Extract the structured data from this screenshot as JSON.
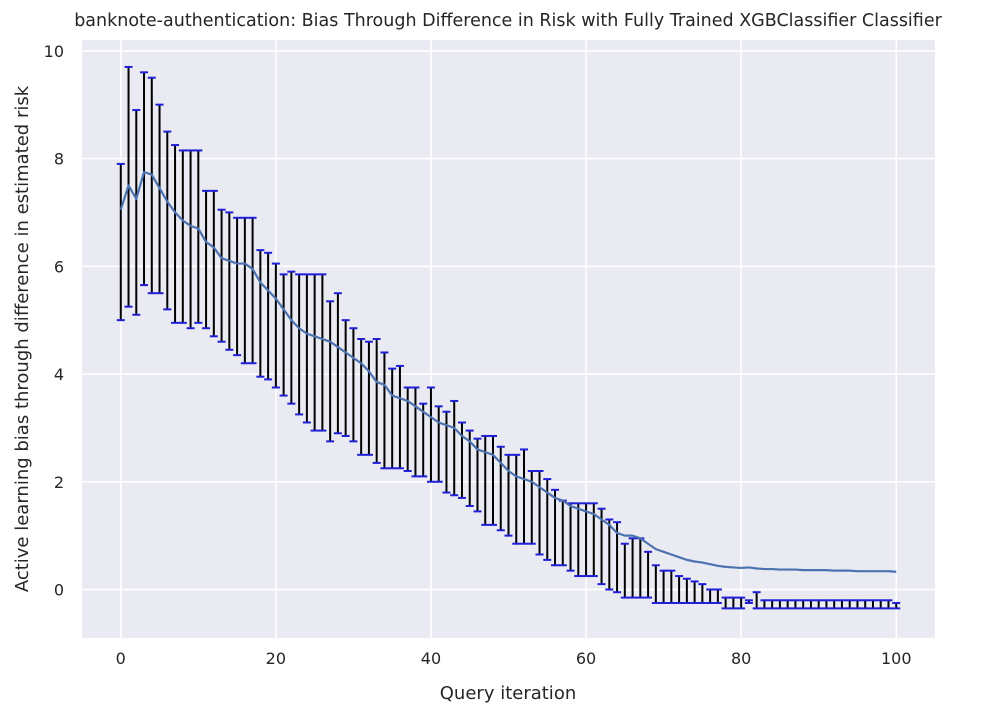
{
  "chart_data": {
    "type": "line",
    "title": "banknote-authentication: Bias Through Difference in Risk with Fully Trained XGBClassifier Classifier",
    "xlabel": "Query iteration",
    "ylabel": "Active learning bias through difference in estimated risk",
    "xlim": [
      -5,
      105
    ],
    "ylim": [
      -0.9,
      10.2
    ],
    "xticks": [
      0,
      20,
      40,
      60,
      80,
      100
    ],
    "yticks": [
      0,
      2,
      4,
      6,
      8,
      10
    ],
    "x_tick_labels": [
      "0",
      "20",
      "40",
      "60",
      "80",
      "100"
    ],
    "y_tick_labels": [
      "0",
      "2",
      "4",
      "6",
      "8",
      "10"
    ],
    "grid": true,
    "colors": {
      "background": "#eaeaf2",
      "grid": "#ffffff",
      "line": "#4c72b0",
      "errorbar": "#000000",
      "cap": "#1f1fd6"
    },
    "series": [
      {
        "x": [
          0,
          1,
          2,
          3,
          4,
          5,
          6,
          7,
          8,
          9,
          10,
          11,
          12,
          13,
          14,
          15,
          16,
          17,
          18,
          19,
          20,
          21,
          22,
          23,
          24,
          25,
          26,
          27,
          28,
          29,
          30,
          31,
          32,
          33,
          34,
          35,
          36,
          37,
          38,
          39,
          40,
          41,
          42,
          43,
          44,
          45,
          46,
          47,
          48,
          49,
          50,
          51,
          52,
          53,
          54,
          55,
          56,
          57,
          58,
          59,
          60,
          61,
          62,
          63,
          64,
          65,
          66,
          67,
          68,
          69,
          70,
          71,
          72,
          73,
          74,
          75,
          76,
          77,
          78,
          79,
          80,
          81,
          82,
          83,
          84,
          85,
          86,
          87,
          88,
          89,
          90,
          91,
          92,
          93,
          94,
          95,
          96,
          97,
          98,
          99,
          100
        ],
        "values": [
          7.05,
          7.5,
          7.25,
          7.75,
          7.7,
          7.45,
          7.2,
          7.0,
          6.85,
          6.75,
          6.7,
          6.45,
          6.35,
          6.15,
          6.1,
          6.05,
          6.05,
          5.95,
          5.7,
          5.55,
          5.4,
          5.2,
          5.0,
          4.85,
          4.75,
          4.7,
          4.65,
          4.6,
          4.5,
          4.4,
          4.3,
          4.2,
          4.05,
          3.85,
          3.8,
          3.6,
          3.55,
          3.5,
          3.4,
          3.3,
          3.2,
          3.1,
          3.05,
          3.0,
          2.85,
          2.75,
          2.6,
          2.55,
          2.5,
          2.35,
          2.2,
          2.1,
          2.05,
          2.0,
          1.9,
          1.8,
          1.7,
          1.65,
          1.55,
          1.5,
          1.45,
          1.4,
          1.3,
          1.2,
          1.05,
          1.0,
          1.0,
          0.95,
          0.85,
          0.75,
          0.7,
          0.65,
          0.6,
          0.55,
          0.52,
          0.5,
          0.47,
          0.44,
          0.42,
          0.41,
          0.4,
          0.41,
          0.39,
          0.38,
          0.38,
          0.37,
          0.37,
          0.37,
          0.36,
          0.36,
          0.36,
          0.36,
          0.35,
          0.35,
          0.35,
          0.34,
          0.34,
          0.34,
          0.34,
          0.34,
          0.33
        ],
        "lower": [
          5.0,
          5.25,
          5.1,
          5.65,
          5.5,
          5.5,
          5.2,
          4.95,
          4.95,
          4.85,
          4.95,
          4.85,
          4.7,
          4.6,
          4.45,
          4.35,
          4.2,
          4.2,
          3.95,
          3.9,
          3.75,
          3.6,
          3.45,
          3.25,
          3.1,
          2.95,
          2.95,
          2.75,
          2.9,
          2.85,
          2.75,
          2.5,
          2.5,
          2.35,
          2.25,
          2.25,
          2.25,
          2.2,
          2.1,
          2.1,
          2.0,
          2.0,
          1.8,
          1.75,
          1.7,
          1.55,
          1.45,
          1.2,
          1.2,
          1.1,
          1.0,
          0.85,
          0.85,
          0.85,
          0.65,
          0.55,
          0.45,
          0.45,
          0.35,
          0.25,
          0.25,
          0.25,
          0.1,
          0.0,
          -0.05,
          -0.15,
          -0.15,
          -0.15,
          -0.15,
          -0.25,
          -0.25,
          -0.25,
          -0.25,
          -0.25,
          -0.25,
          -0.25,
          -0.25,
          -0.25,
          -0.35,
          -0.35,
          -0.35,
          -0.25,
          -0.35,
          -0.35,
          -0.35,
          -0.35,
          -0.35,
          -0.35,
          -0.35,
          -0.35,
          -0.35,
          -0.35,
          -0.35,
          -0.35,
          -0.35,
          -0.35,
          -0.35,
          -0.35,
          -0.35,
          -0.35,
          -0.35
        ],
        "upper": [
          7.9,
          9.7,
          8.9,
          9.6,
          9.5,
          9.0,
          8.5,
          8.25,
          8.15,
          8.15,
          8.15,
          7.4,
          7.4,
          7.05,
          7.0,
          6.9,
          6.9,
          6.9,
          6.3,
          6.25,
          6.05,
          5.85,
          5.9,
          5.85,
          5.85,
          5.85,
          5.85,
          5.35,
          5.5,
          5.0,
          4.85,
          4.65,
          4.6,
          4.65,
          4.4,
          4.1,
          4.15,
          3.75,
          3.75,
          3.45,
          3.75,
          3.4,
          3.3,
          3.5,
          3.1,
          2.95,
          2.8,
          2.85,
          2.85,
          2.65,
          2.5,
          2.5,
          2.6,
          2.2,
          2.2,
          2.05,
          1.85,
          1.65,
          1.6,
          1.6,
          1.6,
          1.6,
          1.5,
          1.3,
          1.25,
          0.85,
          0.95,
          0.95,
          0.7,
          0.45,
          0.35,
          0.35,
          0.25,
          0.2,
          0.15,
          0.1,
          0.0,
          0.0,
          -0.15,
          -0.15,
          -0.15,
          -0.2,
          -0.05,
          -0.2,
          -0.2,
          -0.2,
          -0.2,
          -0.2,
          -0.2,
          -0.2,
          -0.2,
          -0.2,
          -0.2,
          -0.2,
          -0.2,
          -0.2,
          -0.2,
          -0.2,
          -0.2,
          -0.2,
          -0.25
        ]
      }
    ]
  }
}
